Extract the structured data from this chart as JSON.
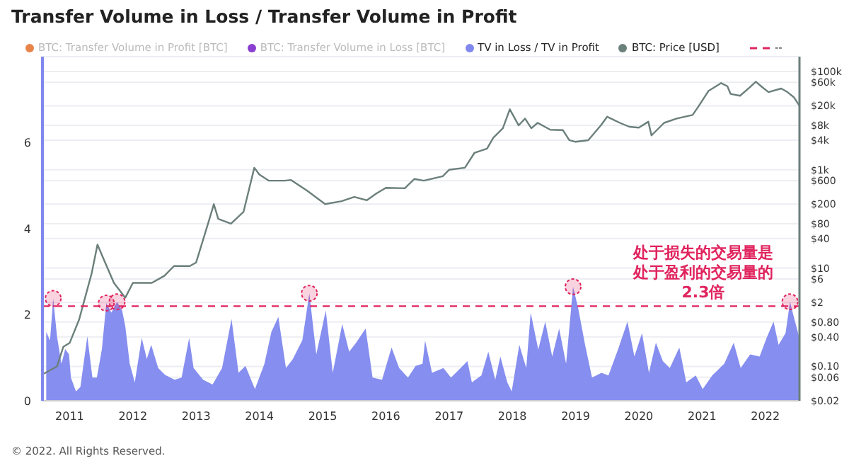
{
  "chart_data": {
    "type": "area",
    "title": "Transfer Volume in Loss / Transfer Volume in Profit",
    "xlim": [
      2010.57,
      2022.54
    ],
    "xticks": [
      2011,
      2012,
      2013,
      2014,
      2015,
      2016,
      2017,
      2018,
      2019,
      2020,
      2021,
      2022
    ],
    "ylim": [
      0,
      8
    ],
    "yticks": [
      0,
      2,
      4,
      6
    ],
    "y2lim": [
      0.02,
      200000
    ],
    "y2ticks": [
      {
        "value": 0.02,
        "label": "$0.02"
      },
      {
        "value": 0.06,
        "label": "$0.06"
      },
      {
        "value": 0.1,
        "label": "$0.10"
      },
      {
        "value": 0.4,
        "label": "$0.40"
      },
      {
        "value": 0.8,
        "label": "$0.80"
      },
      {
        "value": 2,
        "label": "$2"
      },
      {
        "value": 6,
        "label": "$6"
      },
      {
        "value": 10,
        "label": "$10"
      },
      {
        "value": 40,
        "label": "$40"
      },
      {
        "value": 80,
        "label": "$80"
      },
      {
        "value": 200,
        "label": "$200"
      },
      {
        "value": 600,
        "label": "$600"
      },
      {
        "value": 1000,
        "label": "$1k"
      },
      {
        "value": 4000,
        "label": "$4k"
      },
      {
        "value": 8000,
        "label": "$8k"
      },
      {
        "value": 20000,
        "label": "$20k"
      },
      {
        "value": 60000,
        "label": "$60k"
      },
      {
        "value": 100000,
        "label": "$100k"
      }
    ],
    "log": "y2",
    "grid": "y",
    "legend": "top left",
    "series": [
      {
        "name": "BTC: Transfer Volume in Profit [BTC]",
        "color": "#e8844a"
      },
      {
        "name": "BTC: Transfer Volume in Loss [BTC]",
        "color": "#8a3fd1"
      },
      {
        "name": "TV in Loss / TV in Profit",
        "color": "#8088ee",
        "x": [
          2010.63,
          2010.69,
          2010.74,
          2010.8,
          2010.87,
          2010.93,
          2010.99,
          2011.02,
          2011.1,
          2011.17,
          2011.28,
          2011.36,
          2011.43,
          2011.51,
          2011.58,
          2011.66,
          2011.75,
          2011.83,
          2011.88,
          2011.95,
          2012.03,
          2012.14,
          2012.22,
          2012.29,
          2012.4,
          2012.51,
          2012.66,
          2012.77,
          2012.89,
          2012.96,
          2013.11,
          2013.26,
          2013.41,
          2013.56,
          2013.67,
          2013.78,
          2013.93,
          2014.08,
          2014.19,
          2014.3,
          2014.42,
          2014.53,
          2014.68,
          2014.79,
          2014.9,
          2015.05,
          2015.16,
          2015.31,
          2015.42,
          2015.53,
          2015.68,
          2015.79,
          2015.94,
          2016.09,
          2016.21,
          2016.35,
          2016.47,
          2016.58,
          2016.62,
          2016.73,
          2016.91,
          2017.03,
          2017.14,
          2017.29,
          2017.36,
          2017.51,
          2017.62,
          2017.73,
          2017.81,
          2017.92,
          2017.99,
          2018.11,
          2018.22,
          2018.29,
          2018.41,
          2018.52,
          2018.63,
          2018.74,
          2018.85,
          2018.96,
          2019.04,
          2019.15,
          2019.26,
          2019.41,
          2019.52,
          2019.67,
          2019.82,
          2019.93,
          2020.05,
          2020.16,
          2020.27,
          2020.38,
          2020.49,
          2020.64,
          2020.75,
          2020.9,
          2021.01,
          2021.16,
          2021.35,
          2021.5,
          2021.61,
          2021.76,
          2021.91,
          2022.02,
          2022.13,
          2022.21,
          2022.32,
          2022.39,
          2022.47,
          2022.54
        ],
        "values": [
          1.6,
          1.4,
          2.38,
          1.5,
          0.86,
          1.2,
          1.08,
          0.54,
          0.22,
          0.32,
          1.5,
          0.54,
          0.54,
          1.2,
          2.27,
          2.05,
          2.3,
          2.1,
          1.73,
          0.86,
          0.43,
          1.46,
          0.97,
          1.3,
          0.76,
          0.6,
          0.49,
          0.54,
          1.46,
          0.76,
          0.49,
          0.38,
          0.76,
          1.9,
          0.65,
          0.81,
          0.27,
          0.86,
          1.6,
          1.95,
          0.76,
          0.97,
          1.41,
          2.5,
          1.08,
          2.1,
          0.65,
          1.78,
          1.14,
          1.35,
          1.68,
          0.54,
          0.49,
          1.24,
          0.76,
          0.54,
          0.81,
          0.86,
          1.4,
          0.65,
          0.76,
          0.54,
          0.7,
          0.92,
          0.43,
          0.59,
          1.14,
          0.49,
          1.03,
          0.43,
          0.22,
          1.3,
          0.76,
          2.05,
          1.19,
          1.84,
          1.03,
          1.68,
          0.86,
          2.65,
          2.16,
          1.3,
          0.54,
          0.65,
          0.59,
          1.19,
          1.84,
          1.03,
          1.57,
          0.65,
          1.35,
          0.92,
          0.76,
          1.24,
          0.43,
          0.59,
          0.27,
          0.59,
          0.86,
          1.35,
          0.76,
          1.08,
          1.03,
          1.46,
          1.84,
          1.3,
          1.57,
          2.3,
          1.84,
          1.46
        ]
      },
      {
        "name": "BTC: Price [USD]",
        "type": "line",
        "axis": "y2",
        "color": "#6b7f7b",
        "x": [
          2010.58,
          2010.8,
          2010.9,
          2011.0,
          2011.15,
          2011.35,
          2011.44,
          2011.55,
          2011.7,
          2011.88,
          2012.0,
          2012.3,
          2012.5,
          2012.65,
          2012.9,
          2013.0,
          2013.2,
          2013.28,
          2013.35,
          2013.55,
          2013.75,
          2013.92,
          2014.0,
          2014.15,
          2014.4,
          2014.5,
          2014.75,
          2015.04,
          2015.3,
          2015.5,
          2015.7,
          2015.85,
          2016.0,
          2016.3,
          2016.45,
          2016.6,
          2016.9,
          2017.0,
          2017.25,
          2017.4,
          2017.6,
          2017.7,
          2017.85,
          2017.96,
          2018.1,
          2018.2,
          2018.3,
          2018.4,
          2018.6,
          2018.8,
          2018.9,
          2019.0,
          2019.2,
          2019.4,
          2019.5,
          2019.7,
          2019.85,
          2020.0,
          2020.15,
          2020.2,
          2020.4,
          2020.6,
          2020.85,
          2020.95,
          2021.1,
          2021.3,
          2021.4,
          2021.45,
          2021.6,
          2021.75,
          2021.85,
          2021.95,
          2022.05,
          2022.25,
          2022.35,
          2022.45,
          2022.54
        ],
        "values": [
          0.07,
          0.1,
          0.25,
          0.3,
          0.9,
          8,
          30,
          14,
          5,
          2.5,
          5,
          5,
          7,
          11,
          11,
          13,
          90,
          200,
          100,
          80,
          140,
          1100,
          800,
          600,
          600,
          620,
          380,
          200,
          230,
          280,
          240,
          330,
          430,
          420,
          650,
          600,
          740,
          1000,
          1100,
          2200,
          2700,
          4500,
          7000,
          17000,
          8000,
          11000,
          7000,
          9000,
          6500,
          6400,
          4000,
          3700,
          4000,
          8000,
          12000,
          9000,
          7500,
          7200,
          9500,
          5000,
          9000,
          11000,
          13000,
          20000,
          40000,
          58000,
          50000,
          35000,
          32000,
          47000,
          62000,
          48000,
          38000,
          45000,
          38000,
          30000,
          20000
        ]
      }
    ],
    "ref_lines": [
      {
        "axis": "y",
        "value": 2.2,
        "label": "--",
        "color": "#e0245e",
        "line_style": "dashed"
      }
    ],
    "annotations": [
      "处于损失的交易量是处于盈利的交易量的2.3倍",
      "© 2022. All Rights Reserved."
    ]
  }
}
